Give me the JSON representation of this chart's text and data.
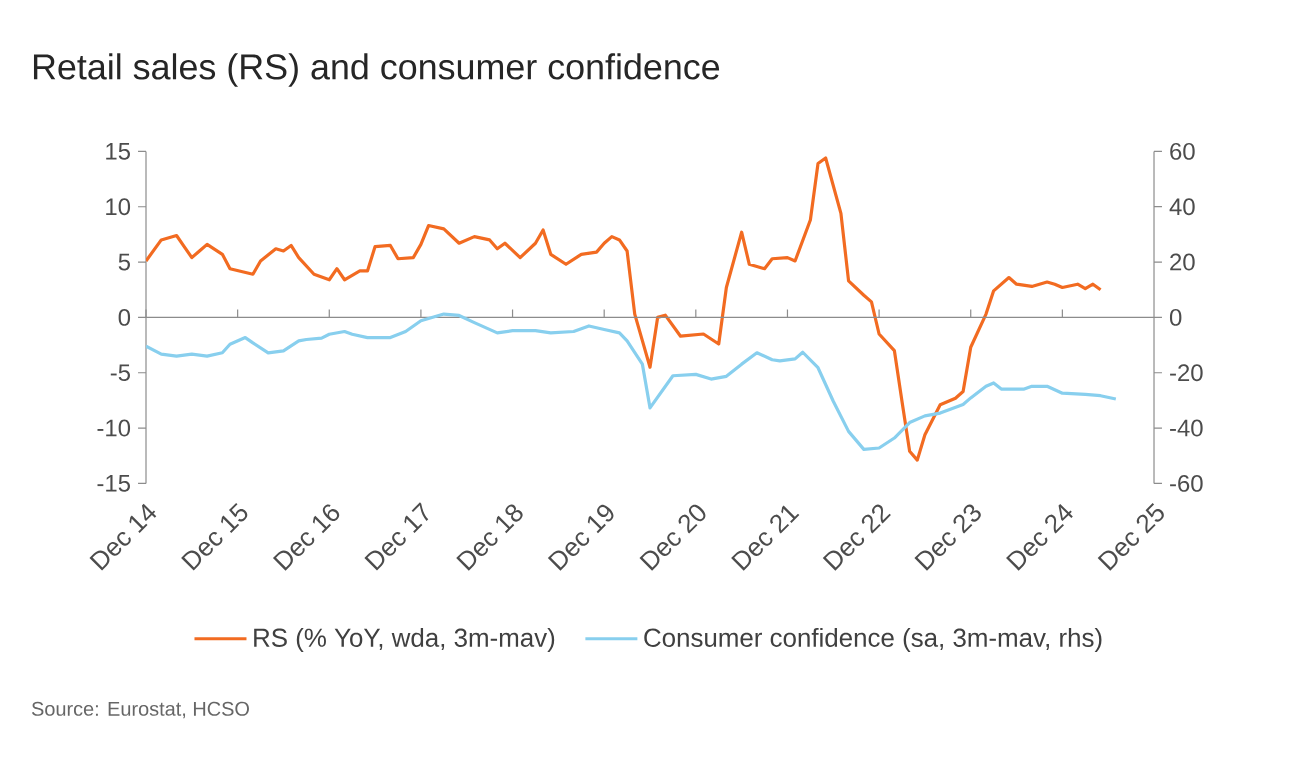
{
  "chart_data": {
    "type": "line",
    "title": "Retail sales (RS) and consumer confidence",
    "x": [
      "2014-12",
      "2015-02",
      "2015-04",
      "2015-05",
      "2015-06",
      "2015-07",
      "2015-08",
      "2015-10",
      "2015-11",
      "2016-02",
      "2016-03",
      "2016-05",
      "2016-06",
      "2016-07",
      "2016-08",
      "2016-10",
      "2016-12",
      "2017-01",
      "2017-02",
      "2017-04",
      "2017-05",
      "2017-06",
      "2017-08",
      "2017-09",
      "2017-11",
      "2017-12",
      "2018-01",
      "2018-03",
      "2018-05",
      "2018-07",
      "2018-09",
      "2018-10",
      "2018-11",
      "2019-01",
      "2019-03",
      "2019-04",
      "2019-05",
      "2019-07",
      "2019-09",
      "2019-11",
      "2019-12",
      "2020-01",
      "2020-02",
      "2020-03",
      "2020-04",
      "2020-05",
      "2020-06",
      "2020-07",
      "2020-08",
      "2020-10",
      "2021-01",
      "2021-03",
      "2021-04",
      "2021-06",
      "2021-07",
      "2021-09",
      "2021-10",
      "2021-12",
      "2022-01",
      "2022-03",
      "2022-04",
      "2022-05",
      "2022-07",
      "2022-08",
      "2022-10",
      "2022-11",
      "2022-12",
      "2023-02",
      "2023-03",
      "2023-04",
      "2023-05",
      "2023-06",
      "2023-08",
      "2023-10",
      "2023-11",
      "2023-12",
      "2024-02",
      "2024-03",
      "2024-05",
      "2024-06",
      "2024-08",
      "2024-10",
      "2024-11",
      "2024-12",
      "2025-02",
      "2025-03",
      "2025-04",
      "2025-05"
    ],
    "series": [
      {
        "name": "RS (% YoY, wda, 3m-mav)",
        "color": "#f26b21",
        "values": [
          5.1,
          7.0,
          7.4,
          6.4,
          5.4,
          6.0,
          6.6,
          5.7,
          4.4,
          3.9,
          5.1,
          6.2,
          6.0,
          6.5,
          5.4,
          3.9,
          3.4,
          4.4,
          3.4,
          4.2,
          4.2,
          6.4,
          6.5,
          5.3,
          5.4,
          6.6,
          8.3,
          8.0,
          6.7,
          7.3,
          7.0,
          6.2,
          6.7,
          5.4,
          6.7,
          7.9,
          5.7,
          4.8,
          5.7,
          5.9,
          6.7,
          7.3,
          7.0,
          6.0,
          0.3,
          -2.1,
          -4.5,
          0,
          0.2,
          -1.7,
          -1.5,
          -2.4,
          2.7,
          7.7,
          4.8,
          4.4,
          5.3,
          5.4,
          5.1,
          8.8,
          13.9,
          14.4,
          9.4,
          3.3,
          2.0,
          1.4,
          -1.5,
          -3.0,
          -7.6,
          -12.1,
          -12.9,
          -10.6,
          -7.9,
          -7.3,
          -6.7,
          -2.7,
          0.3,
          2.4,
          3.6,
          3.0,
          2.8,
          3.2,
          3.0,
          2.7,
          3.0,
          2.6,
          3.0,
          2.5
        ]
      },
      {
        "name": "Consumer confidence (sa, 3m-mav, rhs)",
        "color": "#88cfee",
        "axis": "y2",
        "x": [
          "2014-12",
          "2015-02",
          "2015-04",
          "2015-06",
          "2015-08",
          "2015-10",
          "2015-11",
          "2016-01",
          "2016-02",
          "2016-04",
          "2016-06",
          "2016-08",
          "2016-09",
          "2016-11",
          "2016-12",
          "2017-02",
          "2017-03",
          "2017-05",
          "2017-08",
          "2017-10",
          "2017-12",
          "2018-03",
          "2018-05",
          "2018-07",
          "2018-10",
          "2018-12",
          "2019-03",
          "2019-05",
          "2019-08",
          "2019-10",
          "2019-12",
          "2020-02",
          "2020-03",
          "2020-05",
          "2020-06",
          "2020-09",
          "2020-12",
          "2021-02",
          "2021-04",
          "2021-06",
          "2021-08",
          "2021-10",
          "2021-11",
          "2022-01",
          "2022-02",
          "2022-04",
          "2022-06",
          "2022-08",
          "2022-10",
          "2022-12",
          "2023-02",
          "2023-04",
          "2023-06",
          "2023-08",
          "2023-11",
          "2023-12",
          "2024-02",
          "2024-03",
          "2024-04",
          "2024-07",
          "2024-08",
          "2024-10",
          "2024-12",
          "2025-03",
          "2025-05",
          "2025-07"
        ],
        "values": [
          -10.4,
          -13.3,
          -14.0,
          -13.3,
          -14.0,
          -12.8,
          -9.7,
          -7.3,
          -9.2,
          -12.8,
          -12.1,
          -8.5,
          -8.0,
          -7.5,
          -6.1,
          -5.1,
          -6.1,
          -7.3,
          -7.3,
          -5.1,
          -1.2,
          1.2,
          0.7,
          -1.9,
          -5.6,
          -4.8,
          -4.8,
          -5.6,
          -5.1,
          -3.1,
          -4.4,
          -5.6,
          -8.5,
          -16.9,
          -32.7,
          -21.1,
          -20.6,
          -22.3,
          -21.3,
          -16.9,
          -12.8,
          -15.3,
          -15.7,
          -15.0,
          -12.6,
          -18.2,
          -30.3,
          -41.2,
          -47.7,
          -47.2,
          -43.6,
          -38.0,
          -35.6,
          -34.6,
          -31.5,
          -29.1,
          -24.9,
          -23.7,
          -25.9,
          -25.9,
          -24.9,
          -24.9,
          -27.4,
          -27.8,
          -28.3,
          -29.5
        ]
      }
    ],
    "xlim": [
      "2014-12",
      "2025-12"
    ],
    "xticks": [
      {
        "value": "2014-12",
        "label": "Dec 14"
      },
      {
        "value": "2015-12",
        "label": "Dec 15"
      },
      {
        "value": "2016-12",
        "label": "Dec 16"
      },
      {
        "value": "2017-12",
        "label": "Dec 17"
      },
      {
        "value": "2018-12",
        "label": "Dec 18"
      },
      {
        "value": "2019-12",
        "label": "Dec 19"
      },
      {
        "value": "2020-12",
        "label": "Dec 20"
      },
      {
        "value": "2021-12",
        "label": "Dec 21"
      },
      {
        "value": "2022-12",
        "label": "Dec 22"
      },
      {
        "value": "2023-12",
        "label": "Dec 23"
      },
      {
        "value": "2024-12",
        "label": "Dec 24"
      },
      {
        "value": "2025-12",
        "label": "Dec 25"
      }
    ],
    "ylim": [
      -15,
      15
    ],
    "yticks": [
      -15,
      -10,
      -5,
      0,
      5,
      10,
      15
    ],
    "y2lim": [
      -60,
      60
    ],
    "y2ticks": [
      -60,
      -40,
      -20,
      0,
      20,
      40,
      60
    ],
    "legend": "bottom",
    "marker": "none",
    "line_style": "solid",
    "annotations": [
      "Source: Eurostat, HCSO"
    ]
  }
}
